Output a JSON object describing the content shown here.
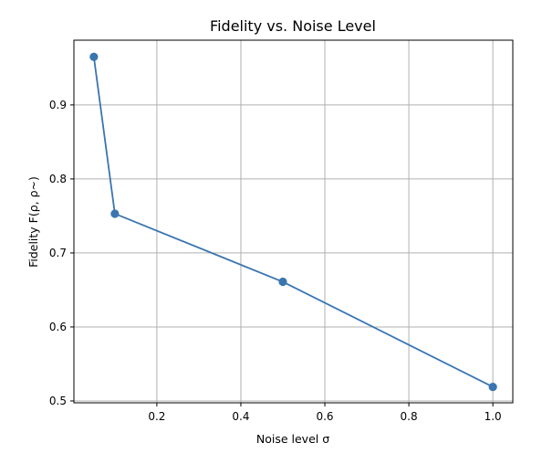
{
  "chart_data": {
    "type": "line",
    "title": "Fidelity vs. Noise Level",
    "xlabel": "Noise level σ",
    "ylabel": "Fidelity F(ρ, ρ~)",
    "xlim": [
      0.0025,
      1.0475
    ],
    "ylim": [
      0.4975,
      0.9875
    ],
    "x_ticks": [
      0.2,
      0.4,
      0.6,
      0.8,
      1.0
    ],
    "x_tick_labels": [
      "0.2",
      "0.4",
      "0.6",
      "0.8",
      "1.0"
    ],
    "y_ticks": [
      0.5,
      0.6,
      0.7,
      0.8,
      0.9
    ],
    "y_tick_labels": [
      "0.5",
      "0.6",
      "0.7",
      "0.8",
      "0.9"
    ],
    "grid": true,
    "legend": "none",
    "series": [
      {
        "x": [
          0.05,
          0.1,
          0.5,
          1.0
        ],
        "values": [
          0.965,
          0.753,
          0.661,
          0.519
        ],
        "color": "#3a75b0",
        "marker": "circle"
      }
    ]
  }
}
